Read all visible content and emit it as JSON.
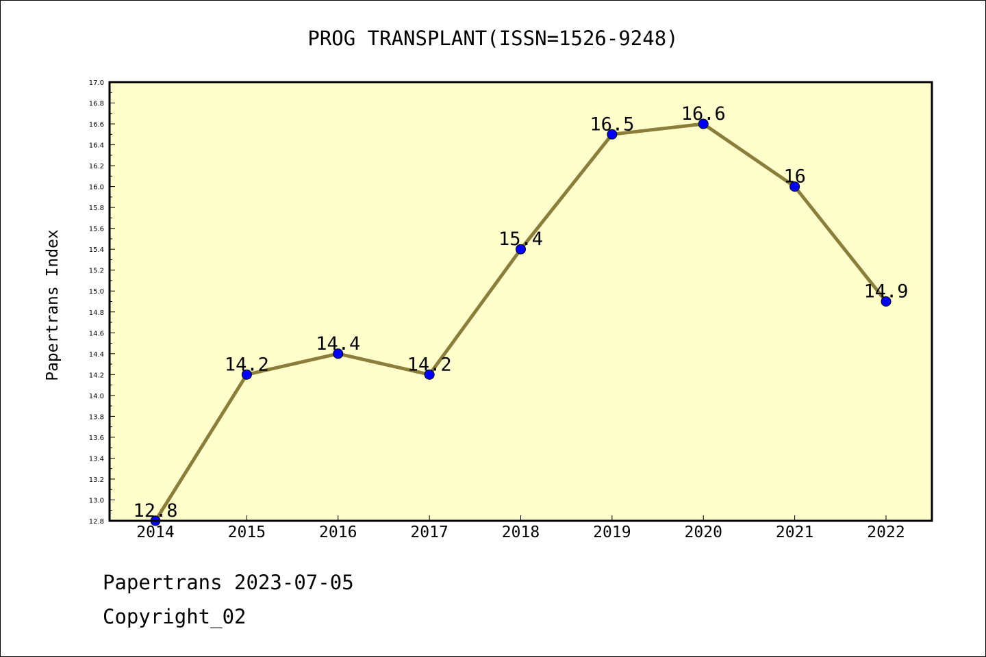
{
  "chart_data": {
    "type": "line",
    "title": "PROG TRANSPLANT(ISSN=1526-9248)",
    "xlabel": "",
    "ylabel": "Papertrans Index",
    "categories": [
      "2014",
      "2015",
      "2016",
      "2017",
      "2018",
      "2019",
      "2020",
      "2021",
      "2022"
    ],
    "series": [
      {
        "values": [
          12.8,
          14.2,
          14.4,
          14.2,
          15.4,
          16.5,
          16.6,
          16.0,
          14.9
        ],
        "data_labels": [
          "12.8",
          "14.2",
          "14.4",
          "14.2",
          "15.4",
          "16.5",
          "16.6",
          "16",
          "14.9"
        ]
      }
    ],
    "ylim": [
      12.8,
      17.0
    ],
    "yticks": [
      "12.8",
      "13.0",
      "13.2",
      "13.4",
      "13.6",
      "13.8",
      "14.0",
      "14.2",
      "14.4",
      "14.6",
      "14.8",
      "15.0",
      "15.2",
      "15.4",
      "15.6",
      "15.8",
      "16.0",
      "16.2",
      "16.4",
      "16.6",
      "16.8",
      "17.0"
    ],
    "grid": false,
    "colors": {
      "plot_background": "#ffffcc",
      "line": "#8b7d3a",
      "marker": "#0000ff"
    }
  },
  "footer": {
    "source": "Papertrans 2023-07-05",
    "copyright": "Copyright_02"
  }
}
